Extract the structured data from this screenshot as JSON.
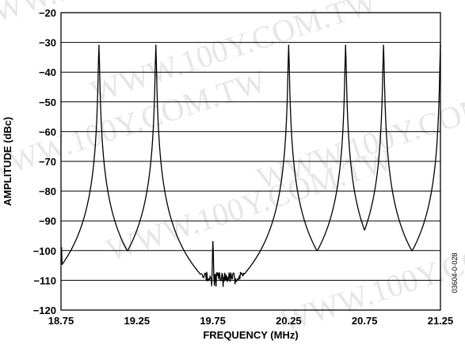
{
  "watermark": "WWW.100Y.COM.TW",
  "figure_id": "03604-0-028",
  "chart_data": {
    "type": "line",
    "xlabel": "FREQUENCY (MHz)",
    "ylabel": "AMPLITUDE (dBc)",
    "xlim": [
      18.75,
      21.25
    ],
    "ylim": [
      -120,
      -20
    ],
    "x_ticks": [
      18.75,
      19.25,
      19.75,
      20.25,
      20.75,
      21.25
    ],
    "x_tick_labels": [
      "18.75",
      "19.25",
      "19.75",
      "20.25",
      "20.75",
      "21.25"
    ],
    "y_ticks": [
      -20,
      -30,
      -40,
      -50,
      -60,
      -70,
      -80,
      -90,
      -100,
      -110,
      -120
    ],
    "y_tick_labels": [
      "−20",
      "−30",
      "−40",
      "−50",
      "−60",
      "−70",
      "−80",
      "−90",
      "−100",
      "−110",
      "−120"
    ],
    "grid": true,
    "noise_floor_dbc": -109,
    "series": [
      {
        "color": "#000000",
        "peaks": [
          {
            "freq": 18.753,
            "amp": -99
          },
          {
            "freq": 19.0,
            "amp": -31
          },
          {
            "freq": 19.375,
            "amp": -31
          },
          {
            "freq": 19.751,
            "amp": -97
          },
          {
            "freq": 20.25,
            "amp": -31
          },
          {
            "freq": 20.625,
            "amp": -31
          },
          {
            "freq": 20.875,
            "amp": -31
          },
          {
            "freq": 21.25,
            "amp": -31
          }
        ]
      }
    ]
  }
}
